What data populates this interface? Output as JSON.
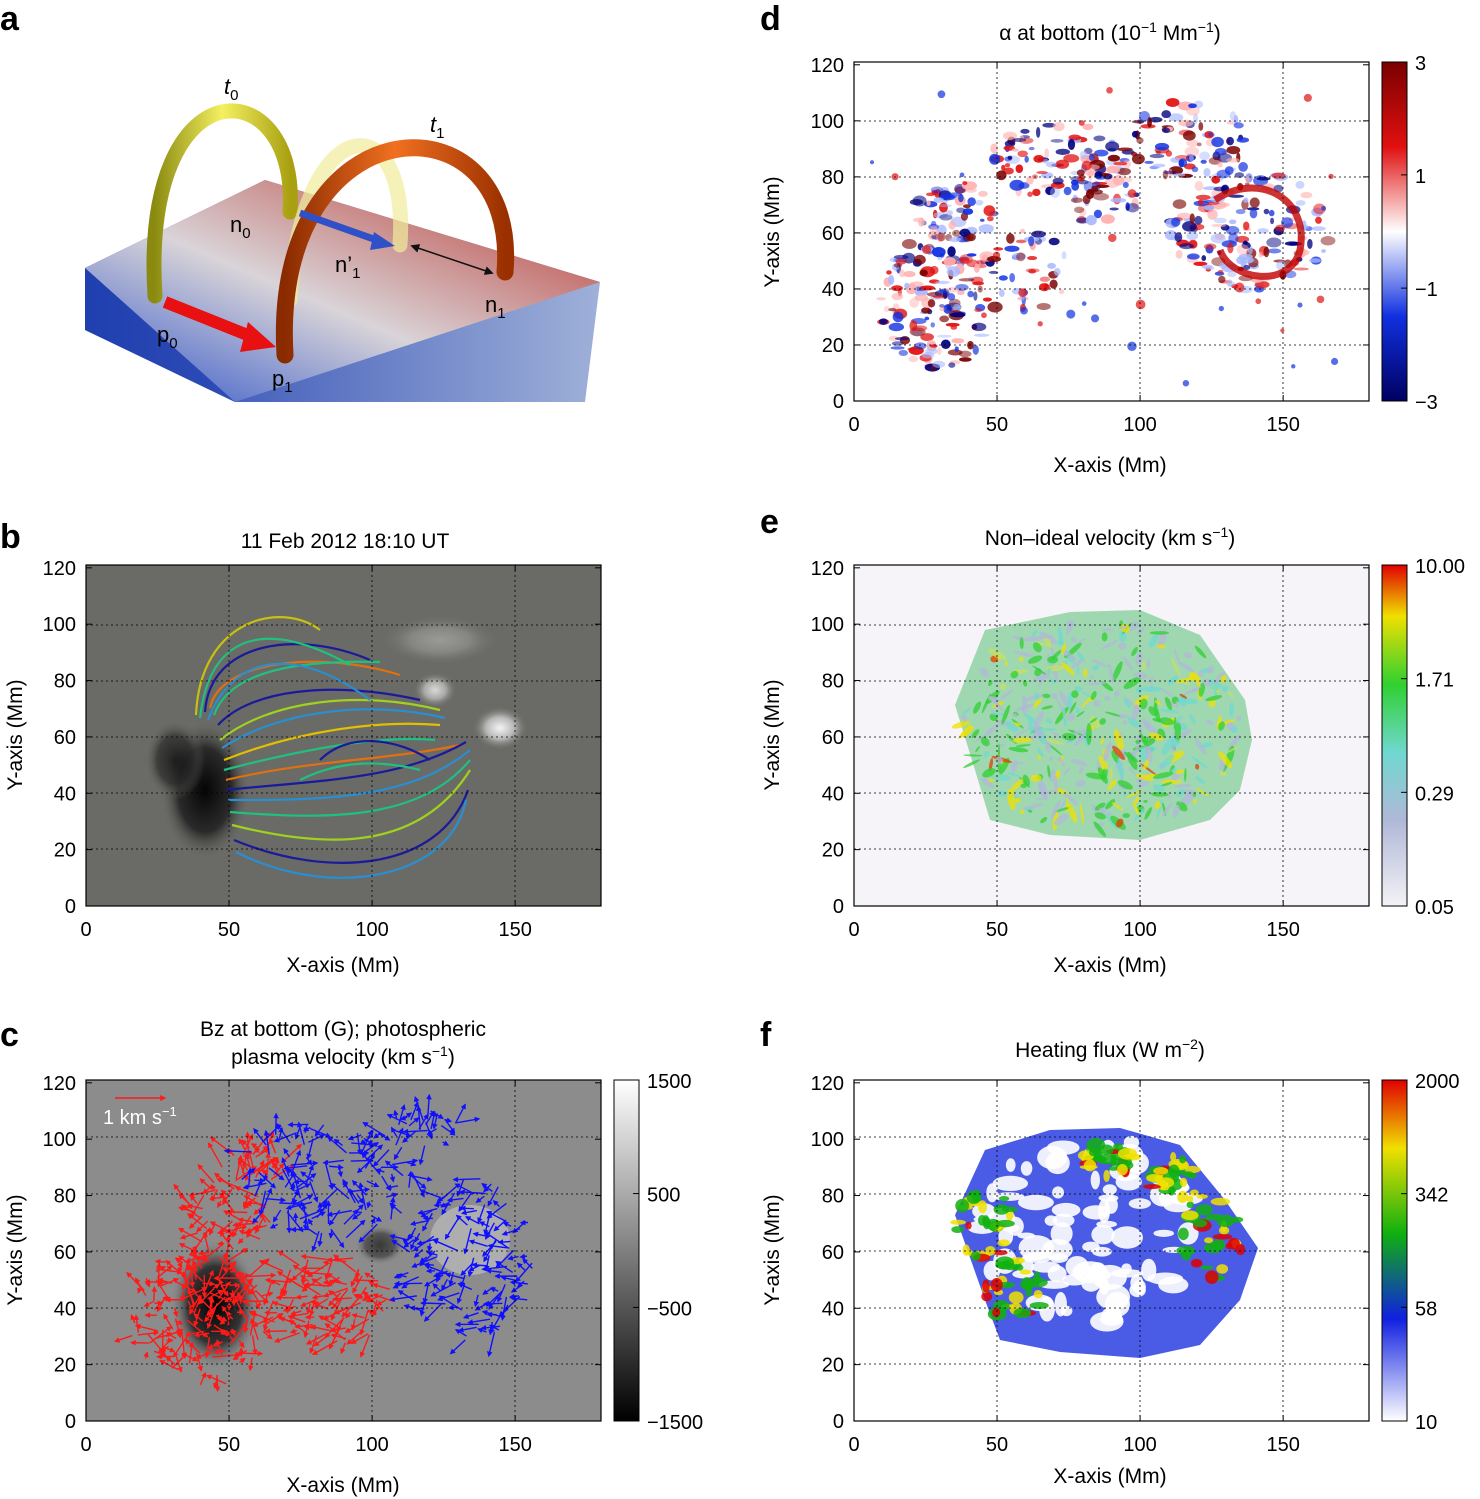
{
  "panels": {
    "a": {
      "letter": "a",
      "labels": {
        "t0_main": "t",
        "t0_sub": "0",
        "t1_main": "t",
        "t1_sub": "1",
        "n0_main": "n",
        "n0_sub": "0",
        "n1p_main": "n’",
        "n1p_sub": "1",
        "n1_main": "n",
        "n1_sub": "1",
        "p0_main": "p",
        "p0_sub": "0",
        "p1_main": "p",
        "p1_sub": "1"
      }
    },
    "b": {
      "letter": "b",
      "title": "11 Feb 2012 18:10 UT",
      "xlabel": "X-axis (Mm)",
      "ylabel": "Y-axis (Mm)"
    },
    "c": {
      "letter": "c",
      "title_line1": "Bz at bottom (G); photospheric",
      "title_line2_pre": "plasma velocity (km s",
      "title_line2_sup": "−1",
      "title_line2_post": ")",
      "xlabel": "X-axis (Mm)",
      "ylabel": "Y-axis (Mm)",
      "arrow_label_pre": "1 km s",
      "arrow_label_sup": "−1"
    },
    "d": {
      "letter": "d",
      "title_pre": "α at bottom (10",
      "title_sup1": "−1",
      "title_mid": " Mm",
      "title_sup2": "−1",
      "title_post": ")",
      "xlabel": "X-axis (Mm)",
      "ylabel": "Y-axis (Mm)"
    },
    "e": {
      "letter": "e",
      "title_pre": "Non–ideal velocity (km s",
      "title_sup": "−1",
      "title_post": ")",
      "xlabel": "X-axis (Mm)",
      "ylabel": "Y-axis (Mm)"
    },
    "f": {
      "letter": "f",
      "title_pre": "Heating flux (W m",
      "title_sup": "−2",
      "title_post": ")",
      "xlabel": "X-axis (Mm)",
      "ylabel": "Y-axis (Mm)"
    }
  },
  "axes": {
    "x_ticks": [
      "0",
      "50",
      "100",
      "150"
    ],
    "y_ticks": [
      "0",
      "20",
      "40",
      "60",
      "80",
      "100",
      "120"
    ]
  },
  "colorbars": {
    "c": {
      "ticks": [
        "1500",
        "500",
        "−500",
        "−1500"
      ],
      "colors": [
        "#ffffff",
        "#000000"
      ]
    },
    "d": {
      "ticks": [
        "3",
        "1",
        "−1",
        "−3"
      ],
      "colors": [
        "#7a0000",
        "#e11010",
        "#ffffff",
        "#1030e0",
        "#000060"
      ]
    },
    "e": {
      "ticks": [
        "10.00",
        "1.71",
        "0.29",
        "0.05"
      ],
      "colors": [
        "#e00000",
        "#f0e000",
        "#30d030",
        "#70d8d0",
        "#b0b8d8",
        "#f4f2f6"
      ]
    },
    "f": {
      "ticks": [
        "2000",
        "342",
        "58",
        "10"
      ],
      "colors": [
        "#e00000",
        "#f0e000",
        "#10b010",
        "#1020e0",
        "#ffffff"
      ]
    }
  },
  "colors": {
    "field_line_palette": [
      "#1a1a9a",
      "#2a8fd0",
      "#20c080",
      "#a0d020",
      "#e0c000",
      "#e07010"
    ],
    "velocity_red": "#ff1a1a",
    "velocity_blue": "#1010ff",
    "magnetogram_bg": "#6a6a66"
  }
}
